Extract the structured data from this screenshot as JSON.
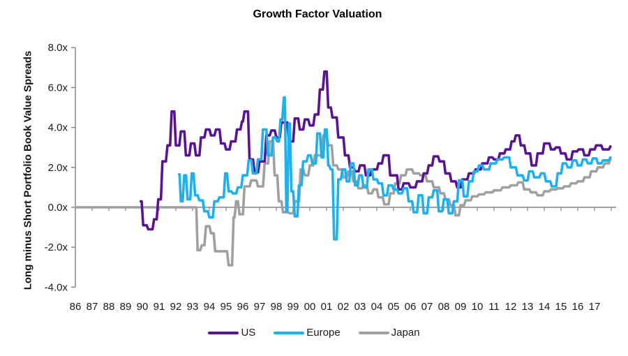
{
  "title": "Growth Factor Valuation",
  "y_axis_label": "Long minus Short Portfolio Book Value Spreads",
  "colors": {
    "us": "#5a1392",
    "europe": "#1cb2ef",
    "japan": "#a0a0a0",
    "axis": "#808080",
    "text": "#1a1a1a"
  },
  "chart_data": {
    "type": "line",
    "title": "Growth Factor Valuation",
    "xlabel": "",
    "ylabel": "Long minus Short Portfolio Book Value Spreads",
    "ylim": [
      -4,
      8
    ],
    "xlim": [
      1986,
      2018
    ],
    "grid": false,
    "legend_position": "bottom",
    "y_ticks": {
      "labels": [
        "8.0x",
        "6.0x",
        "4.0x",
        "2.0x",
        "0.0x",
        "-2.0x",
        "-4.0x"
      ],
      "values": [
        8,
        6,
        4,
        2,
        0,
        -2,
        -4
      ]
    },
    "x_ticks": [
      "86",
      "87",
      "88",
      "89",
      "90",
      "91",
      "92",
      "93",
      "94",
      "95",
      "96",
      "97",
      "98",
      "99",
      "00",
      "01",
      "02",
      "03",
      "04",
      "05",
      "06",
      "07",
      "08",
      "09",
      "10",
      "11",
      "12",
      "13",
      "14",
      "15",
      "16",
      "17"
    ],
    "series": [
      {
        "name": "Japan",
        "color": "#a0a0a0",
        "points": [
          [
            1986.0,
            0.0
          ],
          [
            1993.2,
            0.0
          ],
          [
            1993.3,
            -2.15
          ],
          [
            1993.55,
            -1.9
          ],
          [
            1993.8,
            -0.95
          ],
          [
            1994.1,
            -1.3
          ],
          [
            1994.35,
            -2.2
          ],
          [
            1994.75,
            -2.2
          ],
          [
            1995.15,
            -2.9
          ],
          [
            1995.45,
            -0.5
          ],
          [
            1995.6,
            0.3
          ],
          [
            1995.8,
            -0.35
          ],
          [
            1996.1,
            1.05
          ],
          [
            1996.5,
            1.35
          ],
          [
            1996.9,
            1.05
          ],
          [
            1997.3,
            2.2
          ],
          [
            1997.6,
            3.3
          ],
          [
            1997.9,
            1.6
          ],
          [
            1998.15,
            0.3
          ],
          [
            1998.4,
            -0.25
          ],
          [
            1998.8,
            -0.3
          ],
          [
            1999.1,
            0.3
          ],
          [
            1999.45,
            1.9
          ],
          [
            1999.7,
            1.6
          ],
          [
            2000.0,
            2.1
          ],
          [
            2000.3,
            2.6
          ],
          [
            2000.8,
            3.6
          ],
          [
            2001.1,
            3.1
          ],
          [
            2001.4,
            2.1
          ],
          [
            2001.7,
            1.9
          ],
          [
            2002.0,
            1.5
          ],
          [
            2002.3,
            1.8
          ],
          [
            2002.6,
            1.3
          ],
          [
            2002.9,
            0.95
          ],
          [
            2003.2,
            1.1
          ],
          [
            2003.5,
            0.7
          ],
          [
            2003.8,
            0.9
          ],
          [
            2004.1,
            0.5
          ],
          [
            2004.45,
            0.15
          ],
          [
            2004.8,
            0.7
          ],
          [
            2005.1,
            1.2
          ],
          [
            2005.45,
            1.6
          ],
          [
            2005.8,
            1.9
          ],
          [
            2006.2,
            1.7
          ],
          [
            2006.6,
            1.6
          ],
          [
            2007.0,
            1.3
          ],
          [
            2007.4,
            1.0
          ],
          [
            2007.8,
            0.7
          ],
          [
            2008.1,
            0.4
          ],
          [
            2008.4,
            0.1
          ],
          [
            2008.7,
            -0.4
          ],
          [
            2009.0,
            0.1
          ],
          [
            2009.3,
            0.35
          ],
          [
            2009.7,
            0.55
          ],
          [
            2010.1,
            0.65
          ],
          [
            2010.5,
            0.75
          ],
          [
            2011.0,
            0.85
          ],
          [
            2011.5,
            1.0
          ],
          [
            2012.0,
            1.1
          ],
          [
            2012.45,
            1.25
          ],
          [
            2012.8,
            0.9
          ],
          [
            2013.2,
            0.75
          ],
          [
            2013.6,
            0.6
          ],
          [
            2014.0,
            0.8
          ],
          [
            2014.4,
            0.9
          ],
          [
            2014.8,
            0.95
          ],
          [
            2015.2,
            1.05
          ],
          [
            2015.6,
            1.2
          ],
          [
            2016.0,
            1.3
          ],
          [
            2016.4,
            1.5
          ],
          [
            2016.8,
            1.8
          ],
          [
            2017.2,
            2.0
          ],
          [
            2017.6,
            2.2
          ],
          [
            2017.95,
            2.45
          ]
        ]
      },
      {
        "name": "US",
        "color": "#5a1392",
        "points": [
          [
            1989.9,
            0.3
          ],
          [
            1990.05,
            -0.9
          ],
          [
            1990.35,
            -1.1
          ],
          [
            1990.7,
            -0.6
          ],
          [
            1990.95,
            0.4
          ],
          [
            1991.2,
            2.3
          ],
          [
            1991.5,
            3.1
          ],
          [
            1991.75,
            4.8
          ],
          [
            1992.0,
            3.1
          ],
          [
            1992.3,
            3.8
          ],
          [
            1992.6,
            2.6
          ],
          [
            1992.9,
            3.2
          ],
          [
            1993.2,
            2.6
          ],
          [
            1993.5,
            3.5
          ],
          [
            1993.8,
            3.9
          ],
          [
            1994.1,
            3.6
          ],
          [
            1994.4,
            3.9
          ],
          [
            1994.7,
            3.2
          ],
          [
            1995.0,
            2.9
          ],
          [
            1995.3,
            3.3
          ],
          [
            1995.65,
            3.9
          ],
          [
            1995.95,
            4.3
          ],
          [
            1996.1,
            4.8
          ],
          [
            1996.4,
            2.4
          ],
          [
            1996.7,
            1.75
          ],
          [
            1997.0,
            2.3
          ],
          [
            1997.4,
            3.6
          ],
          [
            1997.7,
            3.85
          ],
          [
            1998.0,
            3.5
          ],
          [
            1998.3,
            4.25
          ],
          [
            1998.75,
            3.3
          ],
          [
            1999.1,
            4.45
          ],
          [
            1999.4,
            3.9
          ],
          [
            1999.7,
            4.4
          ],
          [
            2000.0,
            4.1
          ],
          [
            2000.3,
            4.65
          ],
          [
            2000.6,
            5.9
          ],
          [
            2000.87,
            6.8
          ],
          [
            2001.1,
            5.0
          ],
          [
            2001.35,
            4.5
          ],
          [
            2001.7,
            3.5
          ],
          [
            2002.1,
            2.6
          ],
          [
            2002.4,
            2.0
          ],
          [
            2002.7,
            1.8
          ],
          [
            2003.0,
            2.1
          ],
          [
            2003.35,
            1.6
          ],
          [
            2003.7,
            1.9
          ],
          [
            2004.1,
            2.2
          ],
          [
            2004.4,
            2.6
          ],
          [
            2004.8,
            1.6
          ],
          [
            2005.3,
            0.9
          ],
          [
            2005.6,
            1.2
          ],
          [
            2006.0,
            1.0
          ],
          [
            2006.4,
            1.3
          ],
          [
            2006.8,
            1.7
          ],
          [
            2007.1,
            2.1
          ],
          [
            2007.4,
            2.55
          ],
          [
            2007.75,
            2.3
          ],
          [
            2008.1,
            1.7
          ],
          [
            2008.45,
            1.3
          ],
          [
            2008.8,
            1.0
          ],
          [
            2009.1,
            1.4
          ],
          [
            2009.5,
            1.7
          ],
          [
            2009.9,
            1.9
          ],
          [
            2010.3,
            2.2
          ],
          [
            2010.7,
            2.5
          ],
          [
            2011.0,
            2.4
          ],
          [
            2011.35,
            2.7
          ],
          [
            2011.7,
            2.9
          ],
          [
            2012.05,
            3.3
          ],
          [
            2012.3,
            3.6
          ],
          [
            2012.6,
            3.1
          ],
          [
            2012.9,
            2.7
          ],
          [
            2013.25,
            2.1
          ],
          [
            2013.6,
            2.7
          ],
          [
            2014.0,
            3.2
          ],
          [
            2014.4,
            2.9
          ],
          [
            2014.7,
            3.0
          ],
          [
            2015.0,
            2.7
          ],
          [
            2015.35,
            2.4
          ],
          [
            2015.7,
            2.8
          ],
          [
            2016.05,
            2.9
          ],
          [
            2016.4,
            2.6
          ],
          [
            2016.75,
            2.9
          ],
          [
            2017.1,
            3.1
          ],
          [
            2017.5,
            2.9
          ],
          [
            2017.95,
            3.05
          ]
        ]
      },
      {
        "name": "Europe",
        "color": "#1cb2ef",
        "points": [
          [
            1992.2,
            1.65
          ],
          [
            1992.3,
            0.3
          ],
          [
            1992.5,
            1.6
          ],
          [
            1992.7,
            0.4
          ],
          [
            1992.95,
            1.7
          ],
          [
            1993.15,
            0.6
          ],
          [
            1993.4,
            0.35
          ],
          [
            1993.7,
            -0.2
          ],
          [
            1994.0,
            -0.5
          ],
          [
            1994.3,
            0.3
          ],
          [
            1994.6,
            0.5
          ],
          [
            1994.95,
            1.7
          ],
          [
            1995.15,
            0.8
          ],
          [
            1995.4,
            0.7
          ],
          [
            1995.7,
            1.0
          ],
          [
            1996.0,
            1.6
          ],
          [
            1996.35,
            2.35
          ],
          [
            1996.6,
            1.7
          ],
          [
            1996.9,
            2.4
          ],
          [
            1997.2,
            3.9
          ],
          [
            1997.5,
            2.6
          ],
          [
            1997.8,
            3.5
          ],
          [
            1998.05,
            3.3
          ],
          [
            1998.25,
            4.4
          ],
          [
            1998.45,
            5.5
          ],
          [
            1998.6,
            -0.2
          ],
          [
            1998.75,
            4.2
          ],
          [
            1998.9,
            0.8
          ],
          [
            1999.1,
            -0.45
          ],
          [
            1999.35,
            1.1
          ],
          [
            1999.6,
            2.3
          ],
          [
            1999.9,
            2.6
          ],
          [
            2000.15,
            2.2
          ],
          [
            2000.45,
            3.7
          ],
          [
            2000.7,
            2.5
          ],
          [
            2000.9,
            3.9
          ],
          [
            2001.1,
            2.1
          ],
          [
            2001.25,
            1.9
          ],
          [
            2001.45,
            -1.6
          ],
          [
            2001.7,
            1.4
          ],
          [
            2001.95,
            1.9
          ],
          [
            2002.2,
            1.3
          ],
          [
            2002.45,
            2.2
          ],
          [
            2002.7,
            1.1
          ],
          [
            2002.95,
            1.6
          ],
          [
            2003.2,
            1.0
          ],
          [
            2003.5,
            1.9
          ],
          [
            2003.8,
            1.4
          ],
          [
            2004.1,
            1.2
          ],
          [
            2004.4,
            0.6
          ],
          [
            2004.7,
            1.1
          ],
          [
            2005.0,
            0.9
          ],
          [
            2005.3,
            0.7
          ],
          [
            2005.6,
            0.95
          ],
          [
            2005.9,
            0.3
          ],
          [
            2006.2,
            -0.25
          ],
          [
            2006.5,
            0.6
          ],
          [
            2006.8,
            -0.3
          ],
          [
            2007.1,
            0.5
          ],
          [
            2007.4,
            0.85
          ],
          [
            2007.7,
            -0.2
          ],
          [
            2008.0,
            0.4
          ],
          [
            2008.3,
            -0.3
          ],
          [
            2008.6,
            0.3
          ],
          [
            2008.9,
            1.35
          ],
          [
            2009.2,
            0.55
          ],
          [
            2009.5,
            1.3
          ],
          [
            2009.8,
            1.8
          ],
          [
            2010.1,
            2.1
          ],
          [
            2010.4,
            1.9
          ],
          [
            2010.8,
            2.2
          ],
          [
            2011.2,
            2.4
          ],
          [
            2011.6,
            2.5
          ],
          [
            2012.0,
            2.0
          ],
          [
            2012.4,
            1.6
          ],
          [
            2012.8,
            1.35
          ],
          [
            2013.1,
            1.8
          ],
          [
            2013.4,
            1.5
          ],
          [
            2013.8,
            1.7
          ],
          [
            2014.1,
            1.3
          ],
          [
            2014.45,
            1.05
          ],
          [
            2014.8,
            1.7
          ],
          [
            2015.1,
            2.2
          ],
          [
            2015.4,
            2.0
          ],
          [
            2015.7,
            2.35
          ],
          [
            2016.0,
            2.1
          ],
          [
            2016.3,
            2.4
          ],
          [
            2016.6,
            2.2
          ],
          [
            2016.9,
            2.45
          ],
          [
            2017.2,
            2.2
          ],
          [
            2017.5,
            2.35
          ],
          [
            2017.95,
            2.5
          ]
        ]
      }
    ],
    "legend": [
      "US",
      "Europe",
      "Japan"
    ]
  }
}
